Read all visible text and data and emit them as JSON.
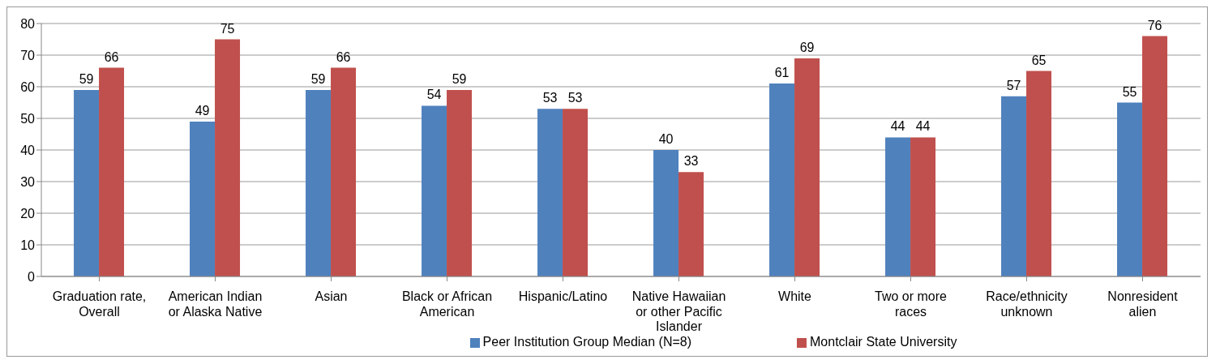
{
  "chart_data": {
    "type": "bar",
    "categories": [
      "Graduation rate, Overall",
      "American Indian or Alaska Native",
      "Asian",
      "Black or African American",
      "Hispanic/Latino",
      "Native Hawaiian or other Pacific Islander",
      "White",
      "Two or more races",
      "Race/ethnicity unknown",
      "Nonresident alien"
    ],
    "series": [
      {
        "name": "Peer Institution Group Median (N=8)",
        "color": "#4f81bd",
        "values": [
          59,
          49,
          59,
          54,
          53,
          40,
          61,
          44,
          57,
          55
        ]
      },
      {
        "name": "Montclair State University",
        "color": "#c0504d",
        "values": [
          66,
          75,
          66,
          59,
          53,
          33,
          69,
          44,
          65,
          76
        ]
      }
    ],
    "ylim": [
      0,
      80
    ],
    "yticks": [
      0,
      10,
      20,
      30,
      40,
      50,
      60,
      70,
      80
    ],
    "grid": "y",
    "legend": "bottom",
    "data_labels": true
  }
}
